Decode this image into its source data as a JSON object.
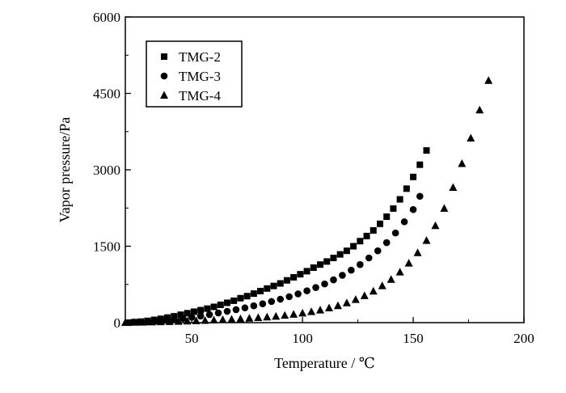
{
  "chart_data": {
    "type": "scatter",
    "title": "",
    "xlabel": "Temperature / ℃",
    "ylabel": "Vapor pressure/Pa",
    "xlim": [
      20,
      200
    ],
    "ylim": [
      0,
      6000
    ],
    "xticks": [
      50,
      100,
      150,
      200
    ],
    "yticks": [
      0,
      1500,
      3000,
      4500,
      6000
    ],
    "legend_position": "top-left",
    "grid": false,
    "series": [
      {
        "name": "TMG-2",
        "marker": "square",
        "color": "#000000",
        "x": [
          21,
          24,
          27,
          30,
          33,
          36,
          39,
          42,
          45,
          48,
          51,
          54,
          57,
          60,
          63,
          66,
          69,
          72,
          75,
          78,
          81,
          84,
          87,
          90,
          93,
          96,
          99,
          102,
          105,
          108,
          111,
          114,
          117,
          120,
          123,
          126,
          129,
          132,
          135,
          138,
          141,
          144,
          147,
          150,
          153,
          156
        ],
        "y": [
          0,
          10,
          20,
          35,
          55,
          75,
          100,
          125,
          155,
          185,
          215,
          245,
          275,
          310,
          350,
          390,
          430,
          480,
          520,
          570,
          620,
          670,
          720,
          770,
          830,
          890,
          950,
          1010,
          1080,
          1140,
          1200,
          1270,
          1340,
          1410,
          1500,
          1600,
          1700,
          1810,
          1940,
          2080,
          2240,
          2420,
          2630,
          2860,
          3100,
          3380
        ]
      },
      {
        "name": "TMG-3",
        "marker": "circle",
        "color": "#000000",
        "x": [
          22,
          26,
          30,
          34,
          38,
          42,
          46,
          50,
          54,
          58,
          62,
          66,
          70,
          74,
          78,
          82,
          86,
          90,
          94,
          98,
          102,
          106,
          110,
          114,
          118,
          122,
          126,
          130,
          134,
          138,
          142,
          146,
          150,
          153
        ],
        "y": [
          0,
          8,
          18,
          30,
          45,
          62,
          82,
          105,
          130,
          158,
          190,
          222,
          255,
          290,
          330,
          370,
          415,
          460,
          510,
          565,
          625,
          690,
          760,
          840,
          930,
          1030,
          1140,
          1270,
          1410,
          1570,
          1760,
          1980,
          2220,
          2480
        ]
      },
      {
        "name": "TMG-4",
        "marker": "triangle",
        "color": "#000000",
        "x": [
          20,
          24,
          28,
          32,
          36,
          40,
          44,
          48,
          52,
          56,
          60,
          64,
          68,
          72,
          76,
          80,
          84,
          88,
          92,
          96,
          100,
          104,
          108,
          112,
          116,
          120,
          124,
          128,
          132,
          136,
          140,
          144,
          148,
          152,
          156,
          160,
          164,
          168,
          172,
          176,
          180,
          184
        ],
        "y": [
          0,
          3,
          6,
          10,
          14,
          18,
          22,
          28,
          34,
          40,
          48,
          56,
          64,
          74,
          84,
          96,
          108,
          122,
          140,
          160,
          185,
          212,
          245,
          285,
          330,
          385,
          450,
          525,
          615,
          720,
          845,
          990,
          1165,
          1370,
          1610,
          1900,
          2240,
          2650,
          3120,
          3620,
          4170,
          4750
        ]
      }
    ]
  }
}
